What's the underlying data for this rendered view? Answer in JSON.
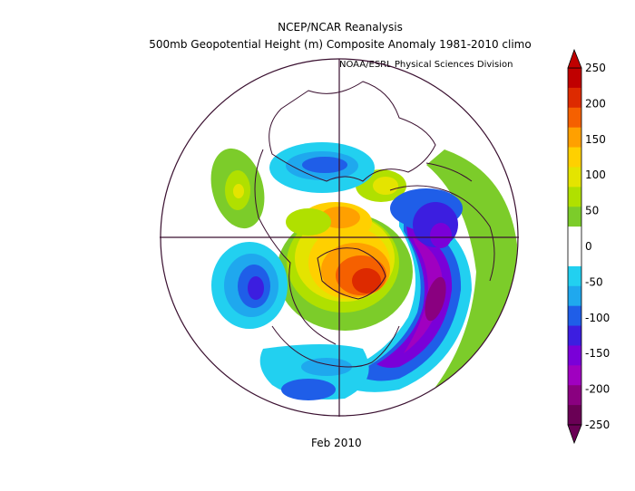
{
  "title": "NCEP/NCAR Reanalysis",
  "subtitle": "500mb Geopotential Height (m) Composite Anomaly 1981-2010 climo",
  "credit": "NOAA/ESRL Physical Sciences Division",
  "date_label": "Feb 2010",
  "colorbar": {
    "ticks": [
      "250",
      "200",
      "150",
      "100",
      "50",
      "0",
      "-50",
      "-100",
      "-150",
      "-200",
      "-250"
    ],
    "colors": [
      "#6a0055",
      "#8a0080",
      "#a000c0",
      "#7a00d8",
      "#3c1ee0",
      "#1f5ee8",
      "#1fa8ee",
      "#22d0f0",
      "#ffffff",
      "#ffffff",
      "#7ccc2a",
      "#b0e000",
      "#e4e400",
      "#ffd000",
      "#ffa000",
      "#f56000",
      "#dd2a00",
      "#c00000"
    ]
  }
}
